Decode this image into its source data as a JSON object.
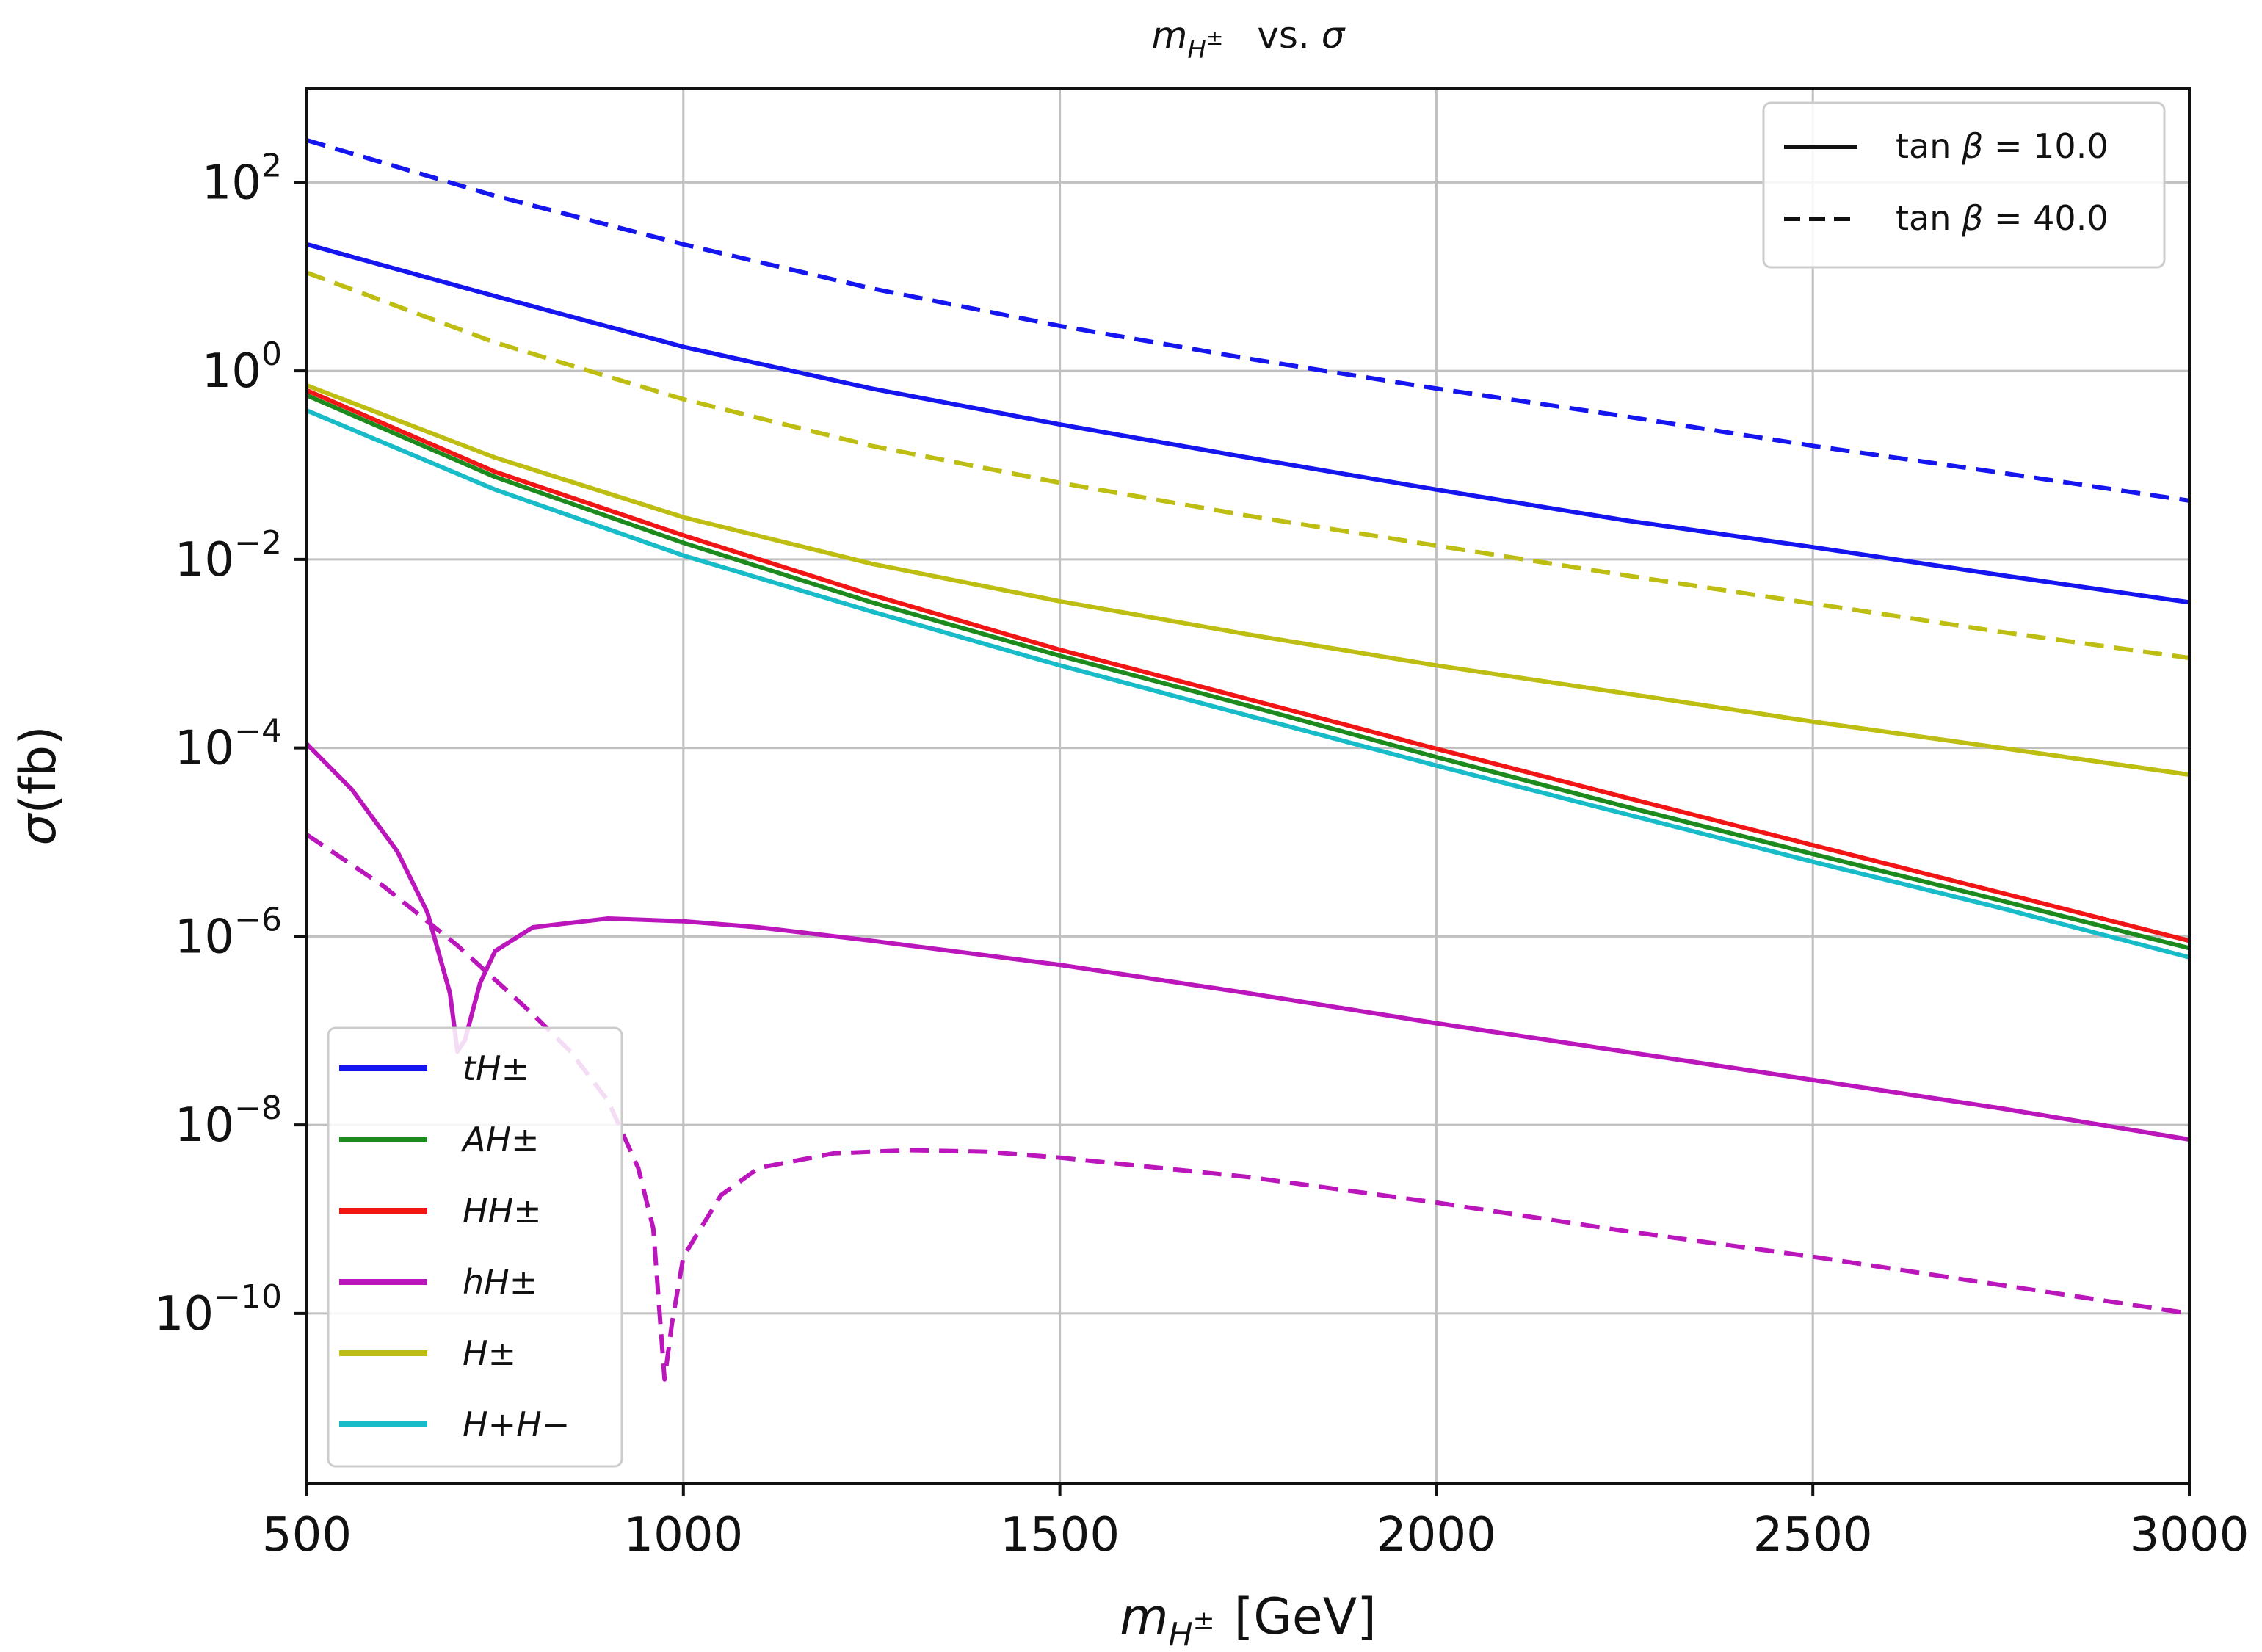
{
  "chart_data": {
    "type": "line",
    "title": "m_{H±} vs. σ",
    "xlabel": "m_{H±} [GeV]",
    "ylabel": "σ(fb)",
    "yscale": "log",
    "xlim": [
      500,
      3000
    ],
    "ylim_exp": [
      -11.8,
      3.0
    ],
    "x_ticks": [
      500,
      1000,
      1500,
      2000,
      2500,
      3000
    ],
    "y_tick_exps": [
      2,
      0,
      -2,
      -4,
      -6,
      -8,
      -10
    ],
    "grid": true,
    "style_legend": {
      "placement": "top-right",
      "entries": [
        {
          "label": "tan β = 10.0",
          "tanb": "10.0",
          "dash": "solid"
        },
        {
          "label": "tan β = 40.0",
          "tanb": "40.0",
          "dash": "dashed"
        }
      ]
    },
    "process_legend": {
      "placement": "bottom-left",
      "entries": [
        {
          "key": "tH",
          "label": "tH±",
          "color": "#1515f0"
        },
        {
          "key": "AH",
          "label": "AH±",
          "color": "#1d8a1d"
        },
        {
          "key": "HH",
          "label": "HH±",
          "color": "#f21515"
        },
        {
          "key": "hH",
          "label": "hH±",
          "color": "#bb16bb"
        },
        {
          "key": "Hpm",
          "label": "H±",
          "color": "#bdbd12"
        },
        {
          "key": "HpHm",
          "label": "H+H−",
          "color": "#17bcc8"
        }
      ]
    },
    "series": [
      {
        "name": "tH± (tanβ = 10.0)",
        "process": "tH",
        "tanb": "10.0",
        "dash": "solid",
        "x": [
          500,
          750,
          1000,
          1250,
          1500,
          1750,
          2000,
          2250,
          2500,
          2750,
          3000
        ],
        "y": [
          22,
          6.2,
          1.8,
          0.65,
          0.27,
          0.12,
          0.055,
          0.026,
          0.0135,
          0.0068,
          0.0035
        ]
      },
      {
        "name": "tH± (tanβ = 40.0)",
        "process": "tH",
        "tanb": "40.0",
        "dash": "dashed",
        "x": [
          500,
          750,
          1000,
          1250,
          1500,
          1750,
          2000,
          2250,
          2500,
          2750,
          3000
        ],
        "y": [
          280,
          72,
          22,
          7.5,
          3.0,
          1.35,
          0.65,
          0.33,
          0.16,
          0.083,
          0.042
        ]
      },
      {
        "name": "AH± (tanβ = 10.0)",
        "process": "AH",
        "tanb": "10.0",
        "dash": "solid",
        "x": [
          500,
          750,
          1000,
          1250,
          1500,
          1750,
          2000,
          2250,
          2500,
          2750,
          3000
        ],
        "y": [
          0.55,
          0.075,
          0.015,
          0.0035,
          0.00095,
          0.00028,
          8e-05,
          2.4e-05,
          7.5e-06,
          2.4e-06,
          7.5e-07
        ]
      },
      {
        "name": "HH± (tanβ = 10.0)",
        "process": "HH",
        "tanb": "10.0",
        "dash": "solid",
        "x": [
          500,
          750,
          1000,
          1250,
          1500,
          1750,
          2000,
          2250,
          2500,
          2750,
          3000
        ],
        "y": [
          0.62,
          0.085,
          0.018,
          0.0042,
          0.0011,
          0.00033,
          9.8e-05,
          3e-05,
          9.3e-06,
          2.9e-06,
          9e-07
        ]
      },
      {
        "name": "hH± (tanβ = 10.0)",
        "process": "hH",
        "tanb": "10.0",
        "dash": "solid",
        "x": [
          500,
          560,
          620,
          660,
          690,
          700,
          710,
          730,
          750,
          800,
          900,
          1000,
          1100,
          1250,
          1500,
          1750,
          2000,
          2250,
          2500,
          2750,
          3000
        ],
        "y": [
          0.00011,
          3.6e-05,
          8e-06,
          1.8e-06,
          2.5e-07,
          6e-08,
          8e-08,
          3.2e-07,
          7e-07,
          1.25e-06,
          1.55e-06,
          1.45e-06,
          1.25e-06,
          9e-07,
          5e-07,
          2.5e-07,
          1.2e-07,
          6e-08,
          3e-08,
          1.5e-08,
          7e-09
        ]
      },
      {
        "name": "hH± (tanβ = 40.0)",
        "process": "hH",
        "tanb": "40.0",
        "dash": "dashed",
        "x": [
          500,
          600,
          700,
          800,
          850,
          900,
          940,
          960,
          975,
          985,
          1000,
          1050,
          1100,
          1200,
          1300,
          1400,
          1500,
          1750,
          2000,
          2250,
          2500,
          2750,
          3000
        ],
        "y": [
          1.2e-05,
          3.5e-06,
          8e-07,
          1.5e-07,
          6e-08,
          1.8e-08,
          3.5e-09,
          8e-10,
          2e-11,
          8e-11,
          4e-10,
          1.8e-09,
          3.5e-09,
          5e-09,
          5.4e-09,
          5.2e-09,
          4.5e-09,
          2.8e-09,
          1.5e-09,
          7.5e-10,
          4e-10,
          2e-10,
          1e-10
        ]
      },
      {
        "name": "H± (tanβ = 10.0)",
        "process": "Hpm",
        "tanb": "10.0",
        "dash": "solid",
        "x": [
          500,
          750,
          1000,
          1250,
          1500,
          1750,
          2000,
          2250,
          2500,
          2750,
          3000
        ],
        "y": [
          0.7,
          0.12,
          0.028,
          0.009,
          0.0036,
          0.0016,
          0.00075,
          0.00038,
          0.00019,
          0.0001,
          5.2e-05
        ]
      },
      {
        "name": "H± (tanβ = 40.0)",
        "process": "Hpm",
        "tanb": "40.0",
        "dash": "dashed",
        "x": [
          500,
          750,
          1000,
          1250,
          1500,
          1750,
          2000,
          2250,
          2500,
          2750,
          3000
        ],
        "y": [
          11,
          2.0,
          0.5,
          0.16,
          0.065,
          0.029,
          0.014,
          0.0068,
          0.0034,
          0.0017,
          0.0009
        ]
      },
      {
        "name": "H+H− (tanβ = 10.0)",
        "process": "HpHm",
        "tanb": "10.0",
        "dash": "solid",
        "x": [
          500,
          750,
          1000,
          1250,
          1500,
          1750,
          2000,
          2250,
          2500,
          2750,
          3000
        ],
        "y": [
          0.38,
          0.055,
          0.011,
          0.0028,
          0.00075,
          0.00022,
          6.5e-05,
          2e-05,
          6.2e-06,
          2e-06,
          6e-07
        ]
      }
    ]
  }
}
